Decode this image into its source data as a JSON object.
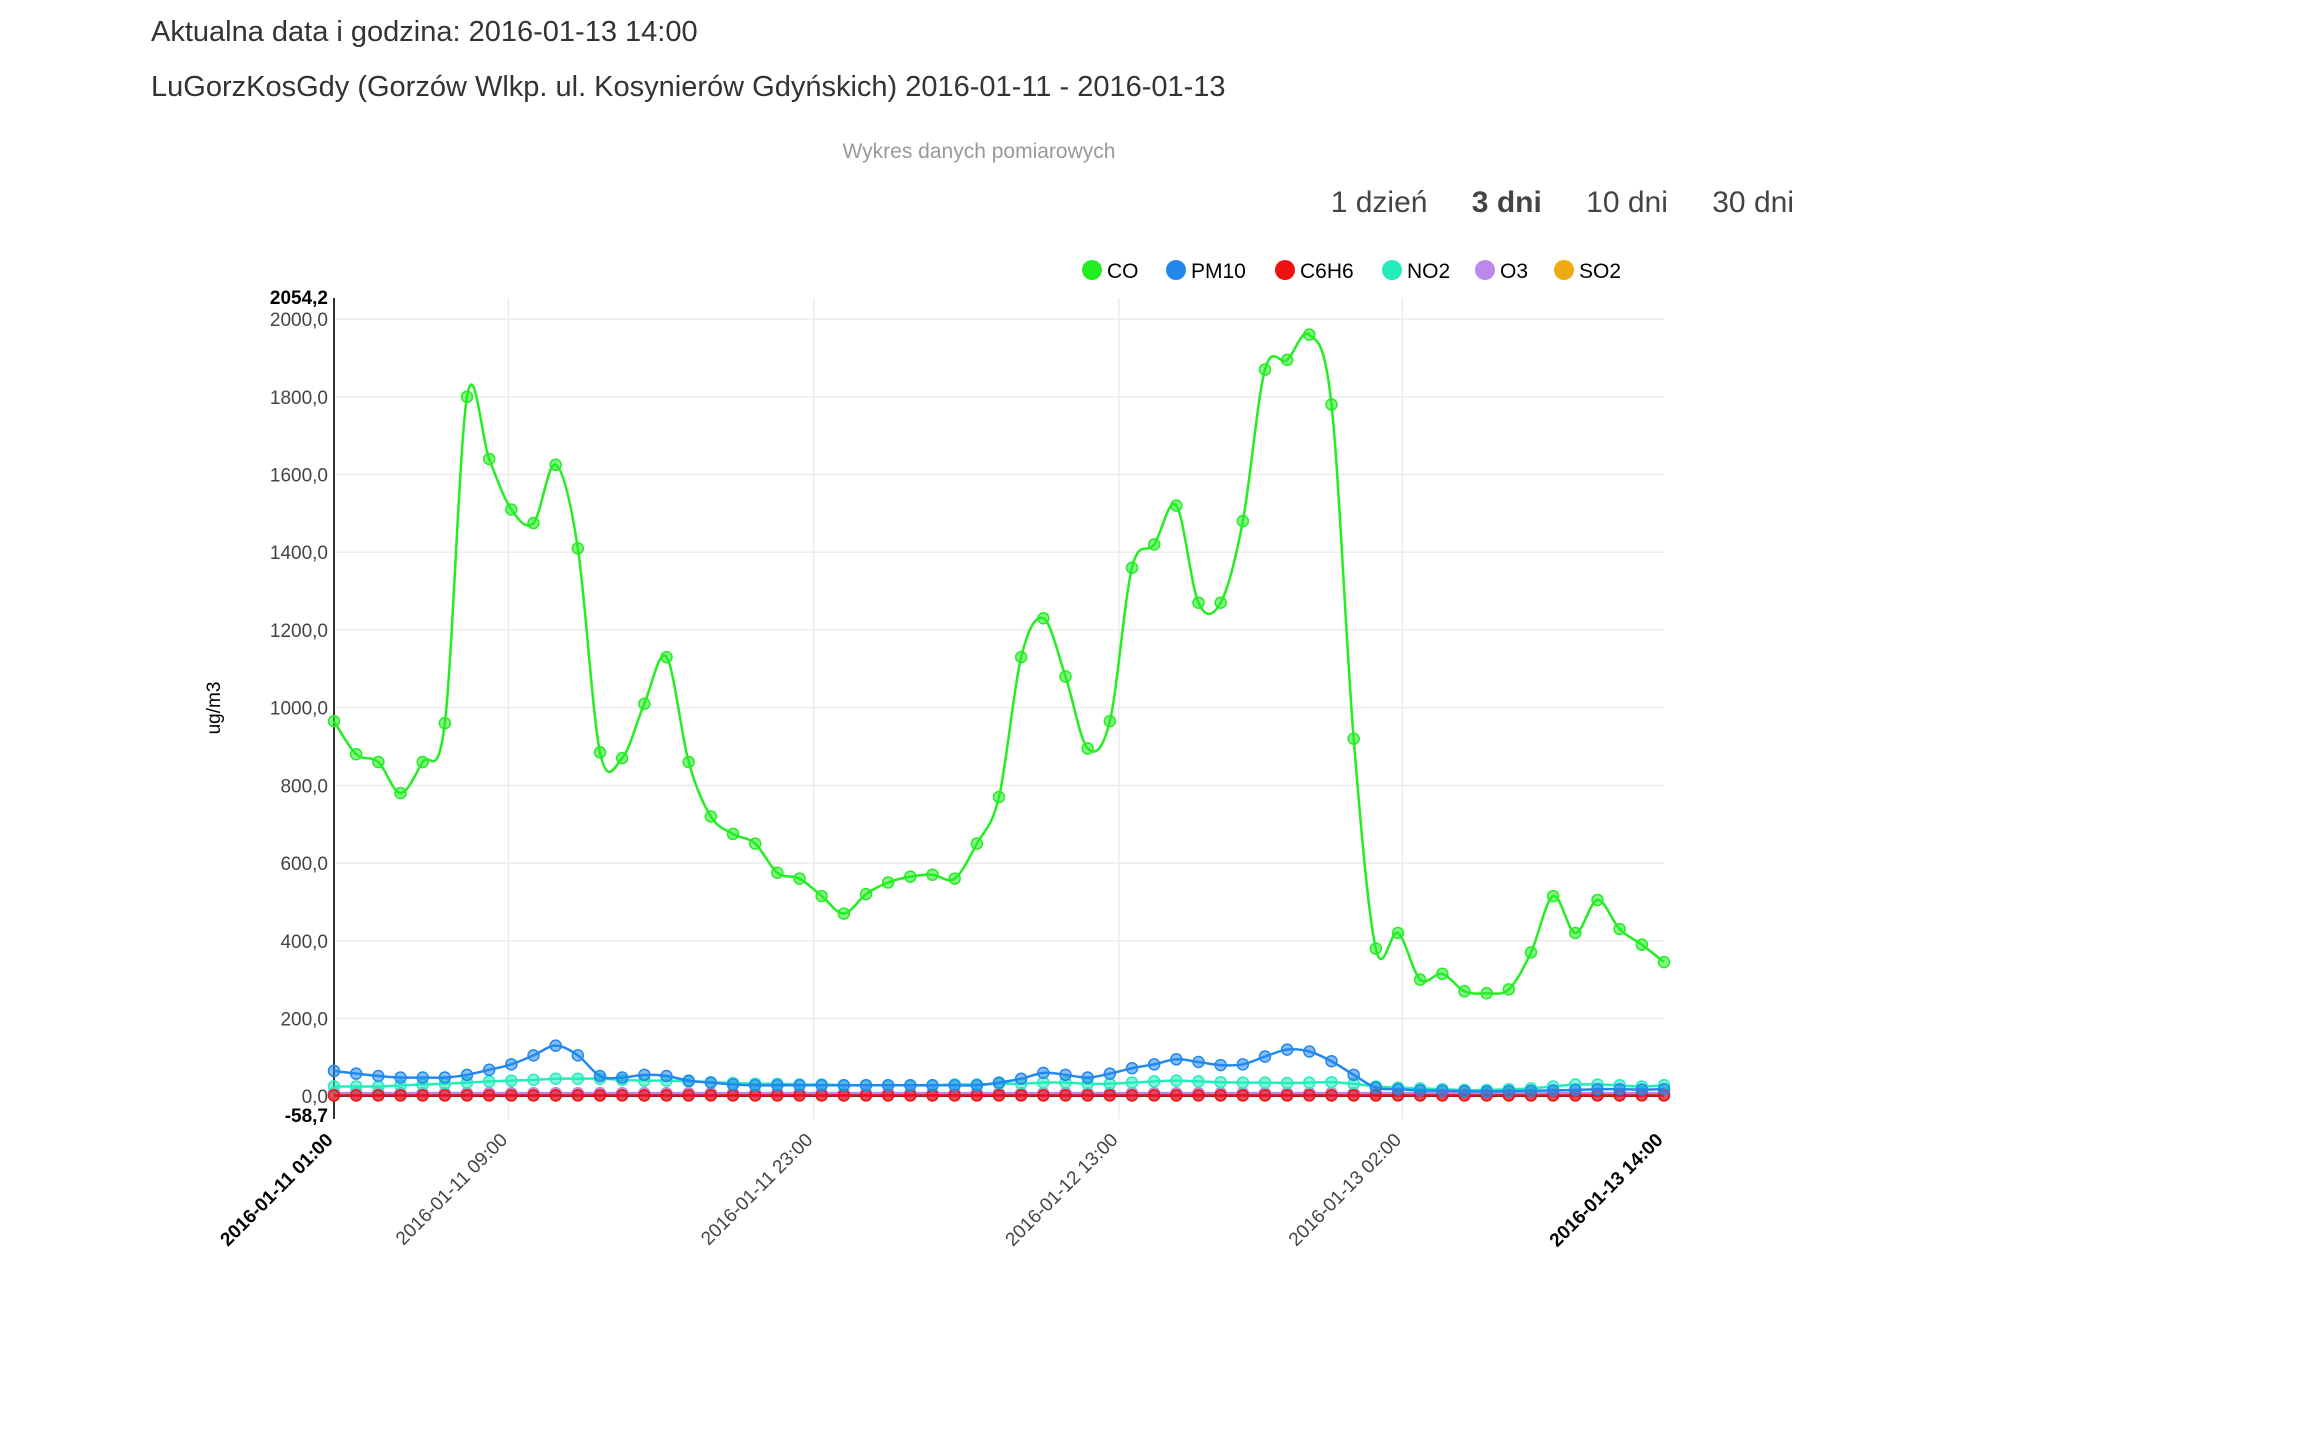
{
  "header": {
    "line1": "Aktualna data i godzina: 2016-01-13 14:00",
    "line2": "LuGorzKosGdy (Gorzów Wlkp. ul. Kosynierów Gdyńskich) 2016-01-11 - 2016-01-13"
  },
  "range_selector": [
    {
      "label": "1 dzień",
      "active": false
    },
    {
      "label": "3 dni",
      "active": true
    },
    {
      "label": "10 dni",
      "active": false
    },
    {
      "label": "30 dni",
      "active": false
    }
  ],
  "chart_data": {
    "type": "line",
    "title": "Wykres danych pomiarowych",
    "ylabel": "ug/m3",
    "xlabel": "",
    "ylim": [
      -58.7,
      2054.2
    ],
    "y_min_label": "-58,7",
    "y_max_label": "2054,2",
    "yticks": [
      0,
      200,
      400,
      600,
      800,
      1000,
      1200,
      1400,
      1600,
      1800,
      2000
    ],
    "ytick_labels": [
      "0,0",
      "200,0",
      "400,0",
      "600,0",
      "800,0",
      "1000,0",
      "1200,0",
      "1400,0",
      "1600,0",
      "1800,0",
      "2000,0"
    ],
    "x_start": "2016-01-11 01:00",
    "x_end": "2016-01-13 14:00",
    "xticks": [
      {
        "label": "2016-01-11 01:00",
        "bold": true
      },
      {
        "label": "2016-01-11 09:00",
        "bold": false
      },
      {
        "label": "2016-01-11 23:00",
        "bold": false
      },
      {
        "label": "2016-01-12 13:00",
        "bold": false
      },
      {
        "label": "2016-01-13 02:00",
        "bold": false
      },
      {
        "label": "2016-01-13 14:00",
        "bold": true
      }
    ],
    "grid": true,
    "legend_position": "top",
    "series": [
      {
        "name": "CO",
        "color": "#22ee22",
        "values": [
          965,
          880,
          860,
          780,
          860,
          960,
          1800,
          1640,
          1510,
          1475,
          1625,
          1410,
          885,
          870,
          1010,
          1130,
          860,
          720,
          675,
          650,
          575,
          560,
          515,
          470,
          520,
          550,
          565,
          570,
          560,
          650,
          770,
          1130,
          1230,
          1080,
          895,
          965,
          1360,
          1420,
          1520,
          1270,
          1270,
          1480,
          1870,
          1895,
          1960,
          1780,
          920,
          380,
          420,
          300,
          315,
          270,
          265,
          275,
          370,
          515,
          420,
          505,
          430,
          390,
          345
        ]
      },
      {
        "name": "PM10",
        "color": "#2288ee",
        "values": [
          65,
          58,
          52,
          48,
          48,
          48,
          55,
          68,
          82,
          105,
          130,
          105,
          52,
          48,
          55,
          52,
          40,
          35,
          30,
          28,
          28,
          28,
          28,
          28,
          28,
          28,
          28,
          28,
          28,
          28,
          35,
          45,
          60,
          55,
          48,
          58,
          72,
          82,
          95,
          88,
          80,
          82,
          102,
          120,
          115,
          90,
          55,
          22,
          18,
          15,
          14,
          13,
          12,
          13,
          14,
          15,
          16,
          18,
          18,
          17,
          18
        ]
      },
      {
        "name": "C6H6",
        "color": "#ee1111",
        "values": [
          2,
          2,
          2,
          2,
          2,
          2,
          2,
          2,
          2,
          2,
          2,
          2,
          2,
          2,
          2,
          2,
          2,
          2,
          2,
          2,
          2,
          2,
          2,
          2,
          2,
          2,
          2,
          2,
          2,
          2,
          2,
          2,
          2,
          2,
          2,
          2,
          2,
          2,
          2,
          2,
          2,
          2,
          2,
          2,
          2,
          2,
          2,
          2,
          2,
          2,
          2,
          2,
          2,
          2,
          2,
          2,
          2,
          2,
          2,
          2,
          2
        ]
      },
      {
        "name": "NO2",
        "color": "#22eebb",
        "values": [
          25,
          25,
          25,
          28,
          30,
          32,
          35,
          38,
          40,
          42,
          45,
          45,
          45,
          42,
          40,
          40,
          38,
          36,
          34,
          32,
          32,
          30,
          30,
          28,
          28,
          28,
          28,
          28,
          30,
          30,
          32,
          32,
          35,
          35,
          32,
          32,
          35,
          38,
          40,
          38,
          36,
          35,
          35,
          34,
          35,
          36,
          32,
          25,
          22,
          20,
          18,
          16,
          16,
          18,
          20,
          25,
          30,
          30,
          28,
          25,
          28
        ]
      },
      {
        "name": "O3",
        "color": "#bb88ee",
        "values": [
          8,
          8,
          8,
          8,
          8,
          8,
          8,
          8,
          8,
          8,
          8,
          8,
          8,
          8,
          8,
          8,
          8,
          8,
          8,
          8,
          8,
          8,
          8,
          8,
          8,
          8,
          8,
          8,
          8,
          8,
          8,
          8,
          8,
          8,
          8,
          8,
          8,
          8,
          8,
          8,
          8,
          8,
          8,
          8,
          8,
          8,
          8,
          8,
          8,
          8,
          8,
          8,
          8,
          8,
          8,
          8,
          8,
          8,
          8,
          8,
          8
        ]
      },
      {
        "name": "SO2",
        "color": "#eeaa11",
        "values": [
          5,
          5,
          5,
          5,
          5,
          5,
          5,
          5,
          5,
          5,
          5,
          5,
          5,
          5,
          5,
          5,
          5,
          5,
          5,
          5,
          5,
          5,
          5,
          5,
          5,
          5,
          5,
          5,
          5,
          5,
          5,
          5,
          5,
          5,
          5,
          5,
          5,
          5,
          5,
          5,
          5,
          5,
          5,
          5,
          5,
          5,
          5,
          5,
          5,
          5,
          5,
          5,
          5,
          5,
          5,
          5,
          5,
          5,
          5,
          5,
          5
        ]
      }
    ]
  }
}
